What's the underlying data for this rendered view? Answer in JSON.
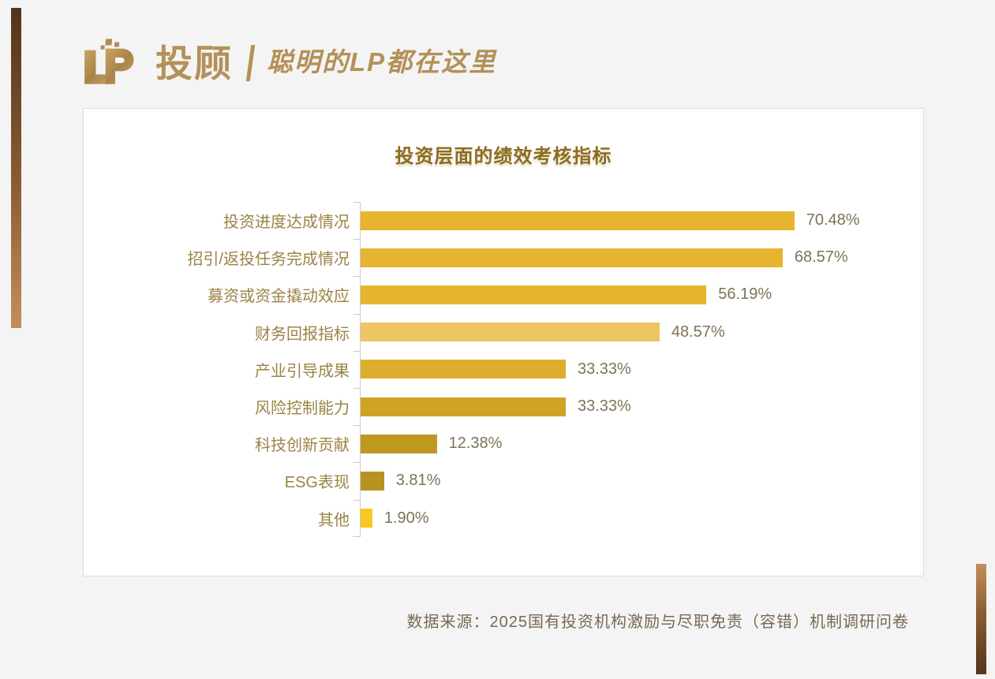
{
  "brand": {
    "monogram": "LP",
    "name": "投顾",
    "tagline": "聪明的LP都在这里",
    "gold": "#b39158"
  },
  "chart_data": {
    "type": "bar",
    "orientation": "horizontal",
    "title": "投资层面的绩效考核指标",
    "categories": [
      "投资进度达成情况",
      "招引/返投任务完成情况",
      "募资或资金撬动效应",
      "财务回报指标",
      "产业引导成果",
      "风险控制能力",
      "科技创新贡献",
      "ESG表现",
      "其他"
    ],
    "values": [
      70.48,
      68.57,
      56.19,
      48.57,
      33.33,
      33.33,
      12.38,
      3.81,
      1.9
    ],
    "value_labels": [
      "70.48%",
      "68.57%",
      "56.19%",
      "48.57%",
      "33.33%",
      "33.33%",
      "12.38%",
      "3.81%",
      "1.90%"
    ],
    "bar_colors": [
      "#e6b42e",
      "#e6b42e",
      "#e6b42e",
      "#edc565",
      "#ddae2c",
      "#d0a326",
      "#bf9822",
      "#b69320",
      "#f9c822"
    ],
    "xlim": [
      0,
      85
    ],
    "grid": false,
    "legend": false,
    "title_color": "#8c6d1e",
    "label_color": "#9b8345",
    "value_color": "#7d7355",
    "axis_color": "#cccccc"
  },
  "footer": {
    "source_note": "数据来源：2025国有投资机构激励与尽职免责（容错）机制调研问卷"
  }
}
